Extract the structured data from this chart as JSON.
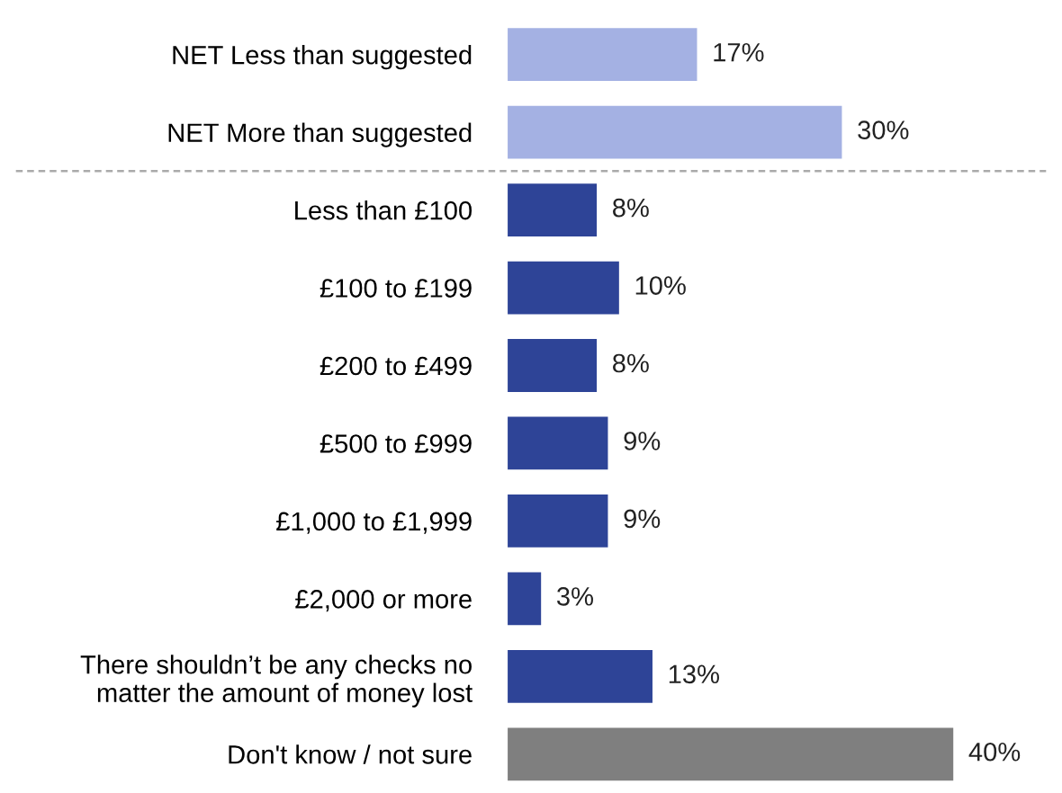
{
  "chart_data": {
    "type": "bar",
    "orientation": "horizontal",
    "categories": [
      "NET Less than suggested",
      "NET More than suggested",
      "Less than £100",
      "£100 to £199",
      "£200 to £499",
      "£500 to £999",
      "£1,000 to £1,999",
      "£2,000 or more",
      "There shouldn’t be any checks no\nmatter the amount of money lost",
      "Don't know / not sure"
    ],
    "values": [
      17,
      30,
      8,
      10,
      8,
      9,
      9,
      3,
      13,
      40
    ],
    "colors": [
      "#a4b1e3",
      "#a4b1e3",
      "#2e4497",
      "#2e4497",
      "#2e4497",
      "#2e4497",
      "#2e4497",
      "#2e4497",
      "#2e4497",
      "#7f7f7f"
    ],
    "value_labels": [
      "17%",
      "30%",
      "8%",
      "10%",
      "8%",
      "9%",
      "9%",
      "3%",
      "13%",
      "40%"
    ],
    "grid": false,
    "legend": false
  }
}
